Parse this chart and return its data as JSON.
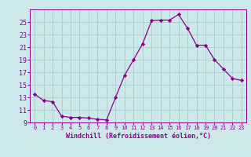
{
  "hours": [
    0,
    1,
    2,
    3,
    4,
    5,
    6,
    7,
    8,
    9,
    10,
    11,
    12,
    13,
    14,
    15,
    16,
    17,
    18,
    19,
    20,
    21,
    22,
    23
  ],
  "windchill": [
    13.5,
    12.5,
    12.3,
    10.0,
    9.8,
    9.8,
    9.7,
    9.5,
    9.4,
    13.0,
    16.5,
    19.0,
    21.5,
    25.2,
    25.3,
    25.3,
    26.2,
    24.0,
    21.3,
    21.3,
    19.0,
    17.5,
    16.0,
    15.7
  ],
  "line_color": "#8B008B",
  "marker": "D",
  "marker_size": 2.2,
  "bg_color": "#cce8e8",
  "grid_color": "#aacccc",
  "xlabel": "Windchill (Refroidissement éolien,°C)",
  "xlim": [
    -0.5,
    23.5
  ],
  "ylim": [
    9,
    27
  ],
  "yticks": [
    9,
    11,
    13,
    15,
    17,
    19,
    21,
    23,
    25
  ],
  "xticks": [
    0,
    1,
    2,
    3,
    4,
    5,
    6,
    7,
    8,
    9,
    10,
    11,
    12,
    13,
    14,
    15,
    16,
    17,
    18,
    19,
    20,
    21,
    22,
    23
  ],
  "tick_color": "#8B008B",
  "label_color": "#8B008B",
  "spine_color": "#8B008B",
  "xlabel_fontsize": 6.0,
  "xtick_fontsize": 5.0,
  "ytick_fontsize": 6.0
}
